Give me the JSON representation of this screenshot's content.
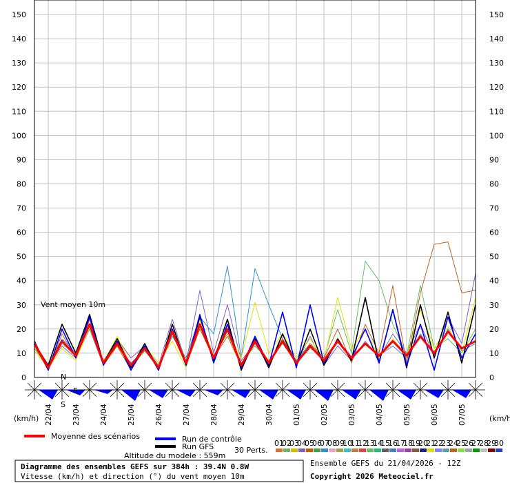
{
  "chart_data": {
    "type": "line",
    "y_axis_label": "(km/h)",
    "annotation": "Vent moyen 10m",
    "compass": [
      "N",
      "S",
      "E"
    ],
    "categories": [
      null,
      "22/04",
      null,
      "23/04",
      null,
      "24/04",
      null,
      "25/04",
      null,
      "26/04",
      null,
      "27/04",
      null,
      "28/04",
      null,
      "29/04",
      null,
      "30/04",
      null,
      "01/05",
      null,
      "02/05",
      null,
      "03/05",
      null,
      "04/05",
      null,
      "05/05",
      null,
      "06/05",
      null,
      "07/05",
      null
    ],
    "ylim": [
      0,
      156
    ],
    "yticks": [
      0,
      10,
      20,
      30,
      40,
      50,
      60,
      70,
      80,
      90,
      100,
      110,
      120,
      130,
      140,
      150
    ],
    "grid": true,
    "series": [
      {
        "name": "Moyenne des scénarios",
        "color": "#ff0000",
        "width": 3,
        "values": [
          14,
          4,
          15,
          9,
          22,
          6,
          14,
          5,
          12,
          4,
          19,
          6,
          22,
          8,
          20,
          5,
          15,
          6,
          15,
          6,
          13,
          7,
          15,
          8,
          14,
          9,
          15,
          9,
          17,
          10,
          19,
          12,
          15
        ]
      },
      {
        "name": "Run de contrôle",
        "color": "#0000ff",
        "width": 1.6,
        "values": [
          15,
          3,
          20,
          8,
          25,
          5,
          15,
          3,
          13,
          3,
          20,
          5,
          26,
          6,
          22,
          4,
          17,
          5,
          27,
          4,
          30,
          6,
          15,
          8,
          20,
          6,
          28,
          5,
          22,
          3,
          25,
          8,
          18
        ]
      },
      {
        "name": "Run GFS",
        "color": "#000000",
        "width": 1.6,
        "values": [
          14,
          5,
          22,
          10,
          26,
          6,
          16,
          4,
          14,
          3,
          22,
          5,
          25,
          7,
          24,
          3,
          16,
          4,
          18,
          5,
          20,
          5,
          16,
          7,
          33,
          6,
          28,
          4,
          30,
          8,
          27,
          6,
          30
        ]
      }
    ],
    "perturbations_label": "30 Perts.",
    "perturbations": [
      {
        "name": "01",
        "color": "#e07030"
      },
      {
        "name": "02",
        "color": "#70b070"
      },
      {
        "name": "03",
        "color": "#d0c000"
      },
      {
        "name": "04",
        "color": "#8060c0",
        "values": [
          12,
          5,
          13,
          8,
          20,
          5,
          16,
          8,
          13,
          5,
          24,
          6,
          36,
          10,
          30,
          7,
          14,
          5,
          18,
          6,
          17,
          5,
          13,
          7,
          15,
          8,
          18,
          10,
          22,
          9,
          25,
          14,
          43
        ]
      },
      {
        "name": "05",
        "color": "#c06000"
      },
      {
        "name": "06",
        "color": "#40a040"
      },
      {
        "name": "07",
        "color": "#3090d0",
        "values": [
          14,
          5,
          16,
          10,
          21,
          6,
          13,
          6,
          11,
          4,
          17,
          8,
          25,
          18,
          46,
          8,
          45,
          30,
          16,
          7,
          14,
          6,
          15,
          8,
          14,
          9,
          13,
          8,
          18,
          9,
          20,
          11,
          14
        ]
      },
      {
        "name": "08",
        "color": "#f0a0c0"
      },
      {
        "name": "09",
        "color": "#a0a040"
      },
      {
        "name": "10",
        "color": "#40c0c0"
      },
      {
        "name": "11",
        "color": "#c08040"
      },
      {
        "name": "12",
        "color": "#e04040"
      },
      {
        "name": "13",
        "color": "#60c060",
        "values": [
          12,
          4,
          14,
          9,
          20,
          7,
          15,
          4,
          11,
          5,
          18,
          7,
          20,
          9,
          18,
          6,
          13,
          7,
          14,
          6,
          12,
          8,
          28,
          10,
          48,
          40,
          22,
          9,
          38,
          12,
          16,
          10,
          20
        ]
      },
      {
        "name": "14",
        "color": "#20c080"
      },
      {
        "name": "15",
        "color": "#606060"
      },
      {
        "name": "16",
        "color": "#4080c0"
      },
      {
        "name": "17",
        "color": "#c060e0"
      },
      {
        "name": "18",
        "color": "#a040a0"
      },
      {
        "name": "19",
        "color": "#806040"
      },
      {
        "name": "20",
        "color": "#202080"
      },
      {
        "name": "21",
        "color": "#e0e000",
        "values": [
          11,
          4,
          12,
          7,
          21,
          6,
          17,
          5,
          13,
          6,
          15,
          4,
          24,
          9,
          19,
          8,
          31,
          10,
          18,
          8,
          16,
          7,
          33,
          12,
          20,
          8,
          16,
          9,
          28,
          12,
          21,
          10,
          33
        ]
      },
      {
        "name": "22",
        "color": "#8080ff"
      },
      {
        "name": "23",
        "color": "#60a0a0"
      },
      {
        "name": "24",
        "color": "#c06020",
        "values": [
          13,
          3,
          18,
          8,
          24,
          5,
          13,
          3,
          12,
          4,
          18,
          5,
          20,
          8,
          17,
          5,
          14,
          6,
          16,
          5,
          14,
          8,
          20,
          6,
          22,
          10,
          38,
          6,
          35,
          55,
          56,
          35,
          36
        ]
      },
      {
        "name": "25",
        "color": "#80e040"
      },
      {
        "name": "26",
        "color": "#a0a0a0"
      },
      {
        "name": "27",
        "color": "#00a000"
      },
      {
        "name": "28",
        "color": "#c0c0c0"
      },
      {
        "name": "29",
        "color": "#800000"
      },
      {
        "name": "30",
        "color": "#2040c0"
      }
    ],
    "altitude": "Altitude du modele : 559m",
    "title": "Diagramme des ensembles GEFS sur 384h : 39.4N 0.8W",
    "subtitle": "Vitesse (km/h) et direction (°) du vent moyen 10m",
    "run_info": "Ensemble GEFS du 21/04/2026 - 12Z",
    "copyright": "Copyright 2026 Meteociel.fr"
  }
}
